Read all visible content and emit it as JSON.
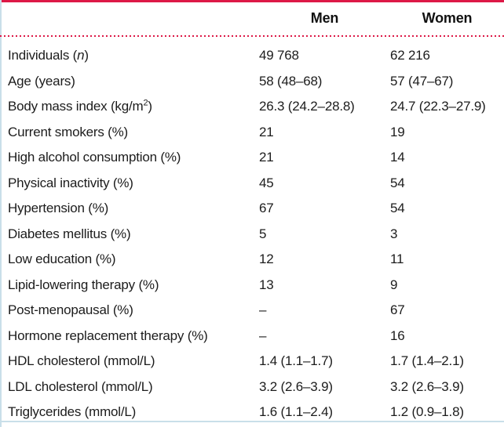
{
  "table": {
    "headers": {
      "men": "Men",
      "women": "Women"
    },
    "rows": [
      {
        "label_pre": "Individuals (",
        "label_italic": "n",
        "label_post": ")",
        "men": "49 768",
        "women": "62 216"
      },
      {
        "label_pre": "Age (years)",
        "men": "58 (48–68)",
        "women": "57 (47–67)"
      },
      {
        "label_pre": "Body mass index (kg/m",
        "label_sup": "2",
        "label_post": ")",
        "men": "26.3 (24.2–28.8)",
        "women": "24.7 (22.3–27.9)"
      },
      {
        "label_pre": "Current smokers (%)",
        "men": "21",
        "women": "19"
      },
      {
        "label_pre": "High alcohol consumption (%)",
        "men": "21",
        "women": "14"
      },
      {
        "label_pre": "Physical inactivity (%)",
        "men": "45",
        "women": "54"
      },
      {
        "label_pre": "Hypertension (%)",
        "men": "67",
        "women": "54"
      },
      {
        "label_pre": "Diabetes mellitus (%)",
        "men": "5",
        "women": "3"
      },
      {
        "label_pre": "Low education (%)",
        "men": "12",
        "women": "11"
      },
      {
        "label_pre": "Lipid-lowering therapy (%)",
        "men": "13",
        "women": "9"
      },
      {
        "label_pre": "Post-menopausal (%)",
        "men": "–",
        "women": "67"
      },
      {
        "label_pre": "Hormone replacement therapy (%)",
        "men": "–",
        "women": "16"
      },
      {
        "label_pre": "HDL cholesterol (mmol/L)",
        "men": "1.4 (1.1–1.7)",
        "women": "1.7 (1.4–2.1)"
      },
      {
        "label_pre": "LDL cholesterol (mmol/L)",
        "men": "3.2 (2.6–3.9)",
        "women": "3.2 (2.6–3.9)"
      },
      {
        "label_pre": "Triglycerides (mmol/L)",
        "men": "1.6 (1.1–2.4)",
        "women": "1.2 (0.9–1.8)"
      }
    ],
    "colors": {
      "accent_red": "#dd1846",
      "edge_blue": "#c9dfe9",
      "text": "#1c1c1c"
    }
  }
}
